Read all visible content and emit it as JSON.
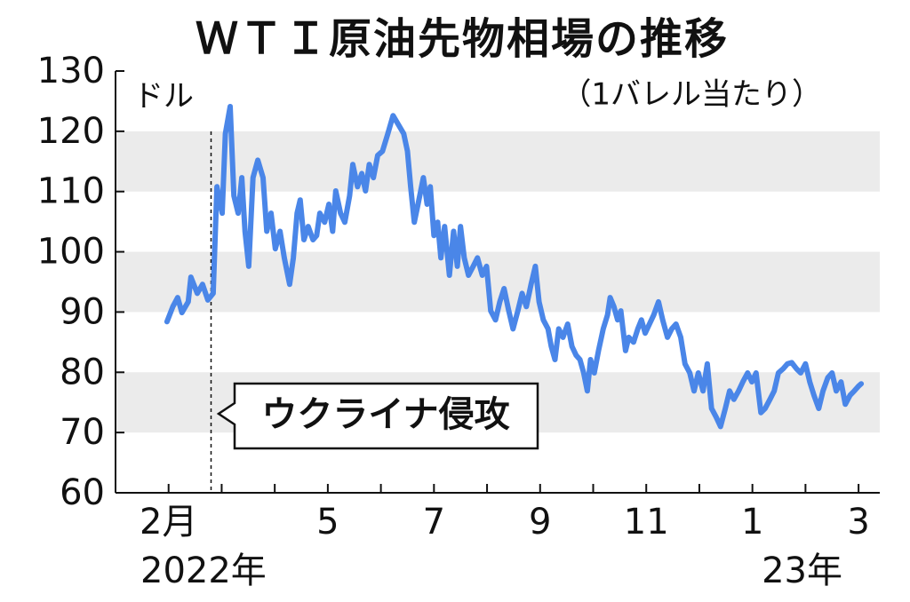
{
  "chart_data": {
    "type": "line",
    "title": "ＷＴＩ原油先物相場の推移",
    "y_unit": "ドル",
    "subtitle": "（1バレル当たり）",
    "year_labels": [
      "2022年",
      "23年"
    ],
    "event": {
      "label": "ウクライナ侵攻",
      "x": 0.8
    },
    "xlim": [
      -1,
      13.4
    ],
    "ylim": [
      60,
      130
    ],
    "yticks": [
      60,
      70,
      80,
      90,
      100,
      110,
      120,
      130
    ],
    "xticks": [
      {
        "value": 0,
        "label": "2月"
      },
      {
        "value": 1,
        "label": null
      },
      {
        "value": 2,
        "label": null
      },
      {
        "value": 3,
        "label": "5"
      },
      {
        "value": 4,
        "label": null
      },
      {
        "value": 5,
        "label": "7"
      },
      {
        "value": 6,
        "label": null
      },
      {
        "value": 7,
        "label": "9"
      },
      {
        "value": 8,
        "label": null
      },
      {
        "value": 9,
        "label": "11"
      },
      {
        "value": 10,
        "label": null
      },
      {
        "value": 11,
        "label": "1"
      },
      {
        "value": 12,
        "label": null
      },
      {
        "value": 13,
        "label": "3"
      }
    ],
    "bands": [
      [
        70,
        80
      ],
      [
        90,
        100
      ],
      [
        110,
        120
      ]
    ],
    "band_color": "#ebebeb",
    "x": [
      -0.03,
      0.08,
      0.17,
      0.25,
      0.37,
      0.42,
      0.54,
      0.64,
      0.74,
      0.84,
      0.91,
      1.01,
      1.07,
      1.16,
      1.23,
      1.31,
      1.38,
      1.44,
      1.51,
      1.59,
      1.68,
      1.78,
      1.85,
      1.93,
      2.01,
      2.1,
      2.18,
      2.28,
      2.35,
      2.42,
      2.48,
      2.55,
      2.63,
      2.72,
      2.79,
      2.85,
      2.94,
      3.02,
      3.09,
      3.15,
      3.24,
      3.32,
      3.41,
      3.47,
      3.56,
      3.64,
      3.71,
      3.78,
      3.86,
      3.94,
      4.03,
      4.13,
      4.23,
      4.33,
      4.43,
      4.5,
      4.56,
      4.63,
      4.7,
      4.8,
      4.87,
      4.93,
      5.0,
      5.07,
      5.13,
      5.2,
      5.29,
      5.37,
      5.44,
      5.5,
      5.57,
      5.65,
      5.74,
      5.82,
      5.91,
      5.99,
      6.07,
      6.16,
      6.24,
      6.32,
      6.41,
      6.49,
      6.58,
      6.66,
      6.74,
      6.83,
      6.91,
      6.98,
      7.06,
      7.15,
      7.21,
      7.28,
      7.35,
      7.43,
      7.52,
      7.6,
      7.68,
      7.75,
      7.82,
      7.89,
      7.95,
      8.02,
      8.1,
      8.19,
      8.27,
      8.32,
      8.39,
      8.46,
      8.52,
      8.61,
      8.67,
      8.76,
      8.84,
      8.91,
      8.98,
      9.06,
      9.14,
      9.23,
      9.31,
      9.4,
      9.48,
      9.56,
      9.65,
      9.73,
      9.82,
      9.9,
      9.98,
      10.07,
      10.15,
      10.23,
      10.32,
      10.4,
      10.49,
      10.57,
      10.65,
      10.74,
      10.82,
      10.91,
      10.99,
      11.07,
      11.16,
      11.24,
      11.33,
      11.41,
      11.49,
      11.58,
      11.66,
      11.74,
      11.83,
      11.91,
      12.0,
      12.08,
      12.16,
      12.25,
      12.33,
      12.42,
      12.5,
      12.58,
      12.67,
      12.75,
      12.84,
      12.92,
      13.0,
      13.05
    ],
    "series": [
      {
        "color": "#4a86e8",
        "values": [
          88.4,
          90.9,
          92.4,
          89.9,
          91.7,
          95.8,
          93.1,
          94.6,
          92.0,
          93.1,
          110.8,
          106.4,
          119.6,
          124.1,
          109.3,
          106.4,
          112.3,
          103.4,
          97.6,
          112.3,
          115.2,
          112.3,
          103.4,
          106.4,
          100.5,
          103.4,
          99.0,
          94.6,
          99.0,
          106.4,
          108.6,
          102.0,
          104.2,
          102.0,
          102.7,
          106.4,
          104.9,
          107.9,
          103.4,
          110.1,
          106.4,
          104.9,
          109.3,
          114.5,
          110.8,
          113.0,
          110.1,
          114.5,
          112.3,
          116.0,
          116.7,
          119.6,
          122.6,
          121.1,
          119.6,
          116.7,
          110.8,
          104.9,
          107.9,
          112.3,
          107.9,
          110.8,
          102.7,
          104.9,
          99.0,
          104.2,
          96.1,
          103.4,
          97.6,
          104.2,
          99.0,
          96.1,
          97.6,
          99.0,
          96.1,
          97.6,
          90.2,
          88.7,
          91.7,
          93.9,
          90.2,
          87.2,
          90.2,
          93.1,
          90.9,
          94.6,
          97.6,
          91.7,
          88.7,
          87.2,
          84.3,
          82.1,
          87.2,
          85.8,
          88.0,
          84.3,
          82.8,
          82.1,
          79.9,
          76.9,
          82.1,
          79.9,
          83.6,
          87.2,
          89.5,
          92.4,
          90.9,
          88.7,
          90.2,
          83.6,
          85.8,
          85.0,
          87.2,
          88.7,
          86.5,
          88.0,
          89.5,
          91.7,
          88.7,
          85.8,
          87.2,
          88.0,
          85.8,
          81.4,
          79.9,
          76.9,
          79.9,
          76.9,
          81.4,
          74.0,
          72.5,
          71.0,
          74.0,
          76.9,
          75.5,
          76.9,
          78.4,
          79.9,
          78.4,
          79.9,
          73.3,
          74.0,
          75.5,
          76.9,
          79.9,
          80.6,
          81.4,
          81.6,
          80.6,
          79.9,
          81.4,
          78.4,
          76.2,
          74.0,
          76.9,
          79.1,
          79.9,
          76.9,
          78.4,
          74.7,
          76.2,
          76.9,
          77.7,
          78.1
        ]
      }
    ]
  }
}
